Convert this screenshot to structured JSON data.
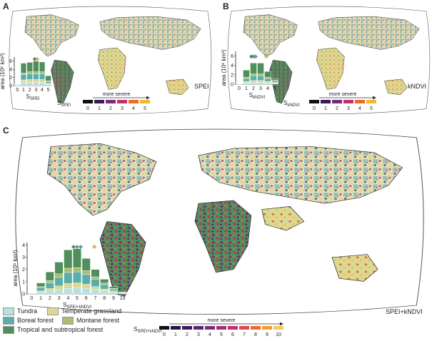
{
  "panels": {
    "A": {
      "letter": "A",
      "map_label": "SPEI",
      "index_label": "S",
      "index_sub": "SPEI",
      "scale_max": 5
    },
    "B": {
      "letter": "B",
      "map_label": "kNDVI",
      "index_label": "S",
      "index_sub": "kNDVI",
      "scale_max": 5
    },
    "C": {
      "letter": "C",
      "map_label": "SPEI+kNDVI",
      "index_label": "S",
      "index_sub": "SPEI+kNDVI",
      "scale_max": 10
    }
  },
  "severity": {
    "label": "more severe",
    "colors_6": [
      "#111111",
      "#3b1a5c",
      "#7b2a7a",
      "#c2306a",
      "#ef6a2a",
      "#f5b731"
    ],
    "colors_11": [
      "#111111",
      "#1f1640",
      "#3b1a5c",
      "#5e2472",
      "#7b2a7a",
      "#a32c76",
      "#c2306a",
      "#dc4750",
      "#ef6a2a",
      "#f59a2c",
      "#f5c95a"
    ]
  },
  "biomes": {
    "colors": {
      "tundra": "#b8e0de",
      "temperate": "#d9d894",
      "boreal": "#5aada8",
      "montane": "#a9bd6e",
      "tropical": "#4f8f5c"
    },
    "legend": [
      {
        "key": "tundra",
        "label": "Tundra"
      },
      {
        "key": "temperate",
        "label": "Temperate grassland"
      },
      {
        "key": "boreal",
        "label": "Boreal forest"
      },
      {
        "key": "montane",
        "label": "Montane forest"
      },
      {
        "key": "tropical",
        "label": "Tropical and subtropical forest"
      }
    ]
  },
  "chart_data": [
    {
      "type": "bar",
      "stacked": true,
      "categories": [
        "0",
        "1",
        "2",
        "3",
        "4",
        "5"
      ],
      "ylim": [
        0,
        7
      ],
      "yticks": [
        0,
        2,
        4,
        6
      ],
      "ylabel": "area (10⁶ km²)",
      "xlabel": "S SPEI",
      "series": [
        {
          "name": "Tundra",
          "values": [
            0.1,
            0.8,
            0.8,
            0.8,
            0.8,
            0.3
          ]
        },
        {
          "name": "Temperate grassland",
          "values": [
            0.1,
            0.6,
            0.7,
            0.7,
            0.7,
            0.3
          ]
        },
        {
          "name": "Boreal forest",
          "values": [
            0.1,
            1.3,
            1.4,
            1.4,
            1.4,
            0.4
          ]
        },
        {
          "name": "Montane forest",
          "values": [
            0.05,
            0.4,
            0.5,
            0.5,
            0.5,
            0.2
          ]
        },
        {
          "name": "Tropical and subtropical forest",
          "values": [
            0.05,
            2.4,
            2.3,
            2.6,
            2.4,
            1.2
          ]
        }
      ],
      "markers": [
        {
          "x": 2.8,
          "y": 6.5
        },
        {
          "x": 3.2,
          "y": 6.5
        }
      ]
    },
    {
      "type": "bar",
      "stacked": true,
      "categories": [
        "0",
        "1",
        "2",
        "3",
        "4",
        "5"
      ],
      "ylim": [
        0,
        7
      ],
      "yticks": [
        0,
        2,
        4,
        6
      ],
      "ylabel": "area (10⁶ km²)",
      "xlabel": "S kNDVI",
      "series": [
        {
          "name": "Tundra",
          "values": [
            0.05,
            0.3,
            0.4,
            0.4,
            0.3,
            0.2
          ]
        },
        {
          "name": "Temperate grassland",
          "values": [
            0.05,
            0.3,
            0.4,
            0.4,
            0.3,
            0.2
          ]
        },
        {
          "name": "Boreal forest",
          "values": [
            0.05,
            0.6,
            1.0,
            1.0,
            0.6,
            0.3
          ]
        },
        {
          "name": "Montane forest",
          "values": [
            0.02,
            0.3,
            0.4,
            0.4,
            0.3,
            0.1
          ]
        },
        {
          "name": "Tropical and subtropical forest",
          "values": [
            0.03,
            1.5,
            2.3,
            2.3,
            1.2,
            0.4
          ]
        }
      ],
      "markers": [
        {
          "x": 1.7,
          "y": 5.9
        },
        {
          "x": 2.0,
          "y": 5.9
        },
        {
          "x": 2.3,
          "y": 5.9
        },
        {
          "x": 3.8,
          "y": 5.9
        }
      ]
    },
    {
      "type": "bar",
      "stacked": true,
      "categories": [
        "0",
        "1",
        "2",
        "3",
        "4",
        "5",
        "6",
        "7",
        "8",
        "9",
        "10"
      ],
      "ylim": [
        0,
        4.2
      ],
      "yticks": [
        0,
        1,
        2,
        3,
        4
      ],
      "ylabel": "area (10⁶ km²)",
      "xlabel": "S SPEI+kNDVI",
      "series": [
        {
          "name": "Tundra",
          "values": [
            0.05,
            0.15,
            0.25,
            0.35,
            0.45,
            0.5,
            0.45,
            0.35,
            0.25,
            0.15,
            0.05
          ]
        },
        {
          "name": "Temperate grassland",
          "values": [
            0.02,
            0.1,
            0.2,
            0.3,
            0.4,
            0.4,
            0.35,
            0.25,
            0.15,
            0.1,
            0.03
          ]
        },
        {
          "name": "Boreal forest",
          "values": [
            0.02,
            0.25,
            0.45,
            0.7,
            0.9,
            0.9,
            0.8,
            0.6,
            0.35,
            0.15,
            0.04
          ]
        },
        {
          "name": "Montane forest",
          "values": [
            0.01,
            0.1,
            0.2,
            0.3,
            0.35,
            0.35,
            0.3,
            0.2,
            0.15,
            0.05,
            0.01
          ]
        },
        {
          "name": "Tropical and subtropical forest",
          "values": [
            0.0,
            0.3,
            0.7,
            0.95,
            1.5,
            1.55,
            1.0,
            0.6,
            0.3,
            0.15,
            0.02
          ]
        }
      ],
      "markers": [
        {
          "x": 4.6,
          "y": 3.85
        },
        {
          "x": 5.0,
          "y": 3.85
        },
        {
          "x": 5.4,
          "y": 3.85
        },
        {
          "x": 6.9,
          "y": 3.85
        }
      ]
    }
  ]
}
